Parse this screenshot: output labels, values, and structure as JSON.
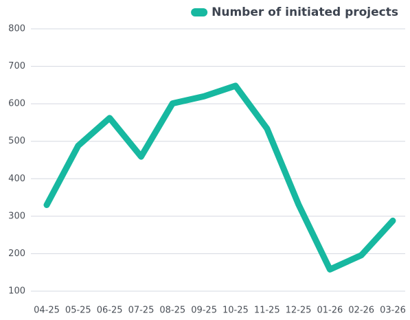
{
  "chart_data": {
    "type": "line",
    "categories": [
      "04-25",
      "05-25",
      "06-25",
      "07-25",
      "08-25",
      "09-25",
      "10-25",
      "11-25",
      "12-25",
      "01-26",
      "02-26",
      "03-26"
    ],
    "series": [
      {
        "name": "Number of initiated projects",
        "color": "#17b8a0",
        "values": [
          330,
          488,
          562,
          459,
          601,
          620,
          648,
          534,
          332,
          158,
          196,
          288
        ]
      }
    ],
    "ylim": [
      100,
      800
    ],
    "yticks": [
      100,
      200,
      300,
      400,
      500,
      600,
      700,
      800
    ],
    "grid": true,
    "legend": "top-right"
  }
}
